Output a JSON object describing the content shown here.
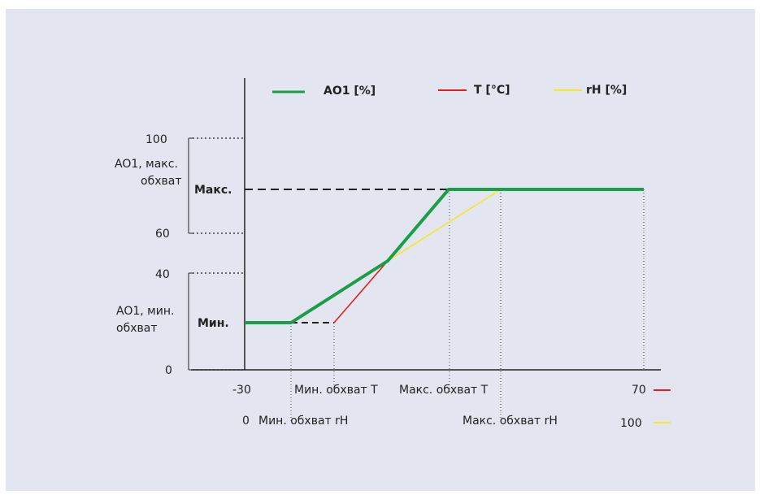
{
  "legend": {
    "ao1": "AO1 [%]",
    "t": "T [°C]",
    "rh": "rH [%]"
  },
  "y_ticks": {
    "v100": "100",
    "v60": "60",
    "v40": "40",
    "v0": "0"
  },
  "y_labels": {
    "max_range_line1": "AO1, макс.",
    "max_range_line2": "обхват",
    "max_level": "Макс.",
    "min_range_line1": "AO1, мин.",
    "min_range_line2": "обхват",
    "min_level": "Мин."
  },
  "x_labels": {
    "t_start": "-30",
    "t_min": "Мин. обхват T",
    "t_max": "Макс. обхват T",
    "t_end": "70",
    "rh_start": "0",
    "rh_min": "Мин. обхват rH",
    "rh_max": "Макс. обхват rH",
    "rh_end": "100"
  },
  "colors": {
    "background": "#e3e6f1",
    "ao1": "#1a9e46",
    "t": "#e02020",
    "rh": "#f5e82a",
    "axis": "#222222"
  }
}
